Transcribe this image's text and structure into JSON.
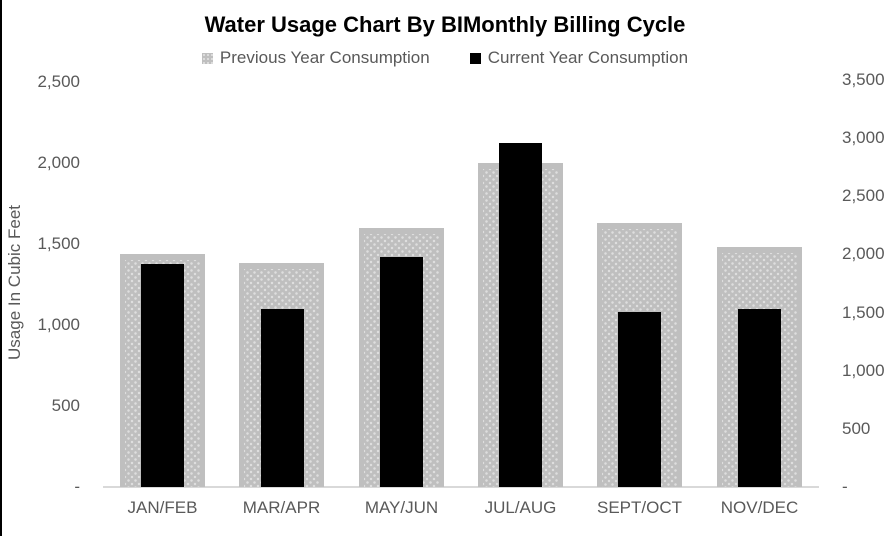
{
  "chart_data": {
    "type": "bar",
    "title": "Water Usage Chart By BIMonthly Billing Cycle",
    "ylabel": "Usage In Cubic Feet",
    "categories": [
      "JAN/FEB",
      "MAR/APR",
      "MAY/JUN",
      "JUL/AUG",
      "SEPT/OCT",
      "NOV/DEC"
    ],
    "series": [
      {
        "name": "Previous Year Consumption",
        "axis": "left",
        "color": "#bfbfbf",
        "pattern_dot_color": "#dedede",
        "fill_pattern": "dots",
        "values": [
          1440,
          1380,
          1600,
          2000,
          1630,
          1480
        ]
      },
      {
        "name": "Current Year Consumption",
        "axis": "right",
        "color": "#000000",
        "fill_pattern": "solid",
        "values": [
          1920,
          1535,
          1980,
          2960,
          1505,
          1535
        ]
      }
    ],
    "axes": {
      "left": {
        "min": 0,
        "max": 2500,
        "ticks": [
          {
            "v": 0,
            "label": "-"
          },
          {
            "v": 500,
            "label": "500"
          },
          {
            "v": 1000,
            "label": "1,000"
          },
          {
            "v": 1500,
            "label": "1,500"
          },
          {
            "v": 2000,
            "label": "2,000"
          },
          {
            "v": 2500,
            "label": "2,500"
          }
        ]
      },
      "right": {
        "min": 0,
        "max": 3500,
        "ticks": [
          {
            "v": 0,
            "label": "-"
          },
          {
            "v": 500,
            "label": "500"
          },
          {
            "v": 1000,
            "label": "1,000"
          },
          {
            "v": 1500,
            "label": "1,500"
          },
          {
            "v": 2000,
            "label": "2,000"
          },
          {
            "v": 2500,
            "label": "2,500"
          },
          {
            "v": 3000,
            "label": "3,000"
          },
          {
            "v": 3500,
            "label": "3,500"
          }
        ]
      }
    },
    "legend_position": "top",
    "grid": false,
    "title_color": "#000000",
    "text_color": "#595959",
    "axis_line_color": "#d9d9d9"
  }
}
